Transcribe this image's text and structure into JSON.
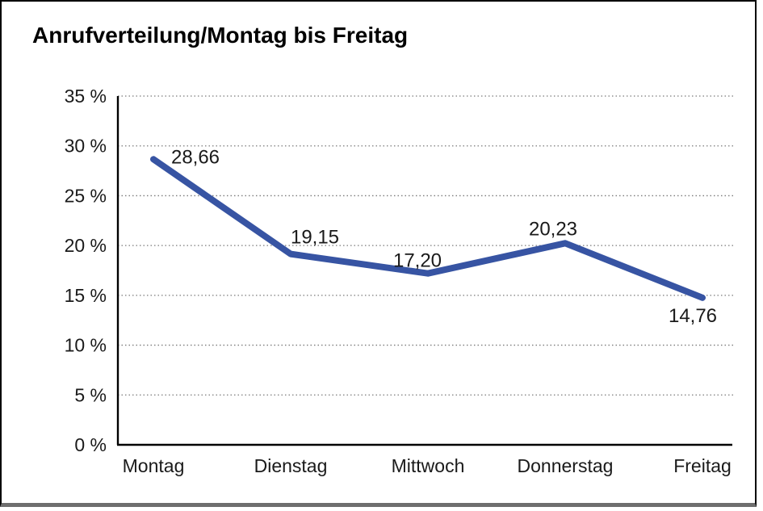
{
  "title": "Anrufverteilung/Montag bis Freitag",
  "chart_data": {
    "type": "line",
    "title": "Anrufverteilung/Montag bis Freitag",
    "categories": [
      "Montag",
      "Dienstag",
      "Mittwoch",
      "Donnerstag",
      "Freitag"
    ],
    "series": [
      {
        "name": "Anrufverteilung",
        "values": [
          28.66,
          19.15,
          17.2,
          20.23,
          14.76
        ]
      }
    ],
    "value_labels": [
      "28,66",
      "19,15",
      "17,20",
      "20,23",
      "14,76"
    ],
    "y_ticks": [
      "0 %",
      "5 %",
      "10 %",
      "15 %",
      "20 %",
      "25 %",
      "30 %",
      "35 %"
    ],
    "y_tick_step": 5,
    "ylim": [
      0,
      35
    ],
    "xlabel": "",
    "ylabel": "",
    "grid": "horizontal-dotted",
    "legend": "none",
    "line_color": "#3754A3",
    "text_color": "#1a1a1a",
    "grid_color": "#7b7b7b"
  }
}
